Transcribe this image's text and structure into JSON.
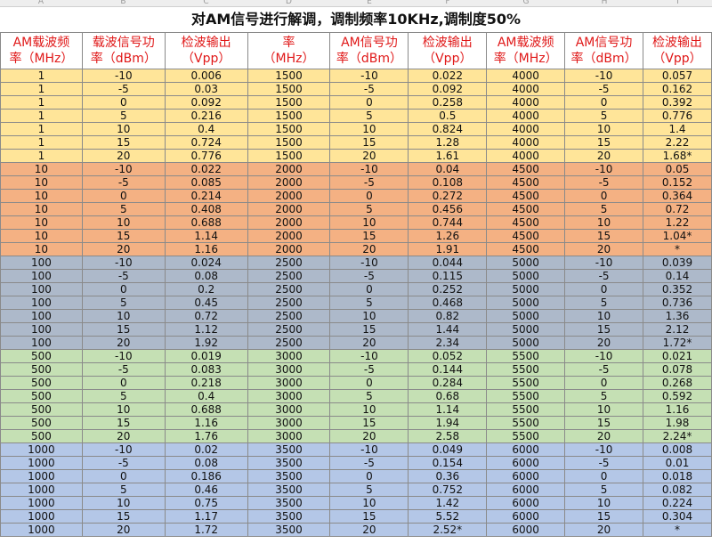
{
  "column_letters": [
    "A",
    "B",
    "C",
    "D",
    "E",
    "F",
    "G",
    "H",
    "I"
  ],
  "title": "对AM信号进行解调，调制频率10KHz,调制度50%",
  "headers": [
    [
      "AM载波频",
      "率（MHz）"
    ],
    [
      "载波信号功",
      "率（dBm）"
    ],
    [
      "检波输出",
      "（Vpp）"
    ],
    [
      "率",
      "（MHz）"
    ],
    [
      "AM信号功",
      "率（dBm）"
    ],
    [
      "检波输出",
      "（Vpp）"
    ],
    [
      "AM载波频",
      "率（MHz）"
    ],
    [
      "AM信号功",
      "率（dBm）"
    ],
    [
      "检波输出",
      "（Vpp）"
    ]
  ],
  "group_colors": [
    "#ffe599",
    "#f4b183",
    "#adb9ca",
    "#c5e0b4",
    "#b4c7e7"
  ],
  "rows": [
    [
      "1",
      "-10",
      "0.006",
      "1500",
      "-10",
      "0.022",
      "4000",
      "-10",
      "0.057"
    ],
    [
      "1",
      "-5",
      "0.03",
      "1500",
      "-5",
      "0.092",
      "4000",
      "-5",
      "0.162"
    ],
    [
      "1",
      "0",
      "0.092",
      "1500",
      "0",
      "0.258",
      "4000",
      "0",
      "0.392"
    ],
    [
      "1",
      "5",
      "0.216",
      "1500",
      "5",
      "0.5",
      "4000",
      "5",
      "0.776"
    ],
    [
      "1",
      "10",
      "0.4",
      "1500",
      "10",
      "0.824",
      "4000",
      "10",
      "1.4"
    ],
    [
      "1",
      "15",
      "0.724",
      "1500",
      "15",
      "1.28",
      "4000",
      "15",
      "2.22"
    ],
    [
      "1",
      "20",
      "0.776",
      "1500",
      "20",
      "1.61",
      "4000",
      "20",
      "1.68*"
    ],
    [
      "10",
      "-10",
      "0.022",
      "2000",
      "-10",
      "0.04",
      "4500",
      "-10",
      "0.05"
    ],
    [
      "10",
      "-5",
      "0.085",
      "2000",
      "-5",
      "0.108",
      "4500",
      "-5",
      "0.152"
    ],
    [
      "10",
      "0",
      "0.214",
      "2000",
      "0",
      "0.272",
      "4500",
      "0",
      "0.364"
    ],
    [
      "10",
      "5",
      "0.408",
      "2000",
      "5",
      "0.456",
      "4500",
      "5",
      "0.72"
    ],
    [
      "10",
      "10",
      "0.688",
      "2000",
      "10",
      "0.744",
      "4500",
      "10",
      "1.22"
    ],
    [
      "10",
      "15",
      "1.14",
      "2000",
      "15",
      "1.26",
      "4500",
      "15",
      "1.04*"
    ],
    [
      "10",
      "20",
      "1.16",
      "2000",
      "20",
      "1.91",
      "4500",
      "20",
      "*"
    ],
    [
      "100",
      "-10",
      "0.024",
      "2500",
      "-10",
      "0.044",
      "5000",
      "-10",
      "0.039"
    ],
    [
      "100",
      "-5",
      "0.08",
      "2500",
      "-5",
      "0.115",
      "5000",
      "-5",
      "0.14"
    ],
    [
      "100",
      "0",
      "0.2",
      "2500",
      "0",
      "0.252",
      "5000",
      "0",
      "0.352"
    ],
    [
      "100",
      "5",
      "0.45",
      "2500",
      "5",
      "0.468",
      "5000",
      "5",
      "0.736"
    ],
    [
      "100",
      "10",
      "0.72",
      "2500",
      "10",
      "0.82",
      "5000",
      "10",
      "1.36"
    ],
    [
      "100",
      "15",
      "1.12",
      "2500",
      "15",
      "1.44",
      "5000",
      "15",
      "2.12"
    ],
    [
      "100",
      "20",
      "1.92",
      "2500",
      "20",
      "2.34",
      "5000",
      "20",
      "1.72*"
    ],
    [
      "500",
      "-10",
      "0.019",
      "3000",
      "-10",
      "0.052",
      "5500",
      "-10",
      "0.021"
    ],
    [
      "500",
      "-5",
      "0.083",
      "3000",
      "-5",
      "0.144",
      "5500",
      "-5",
      "0.078"
    ],
    [
      "500",
      "0",
      "0.218",
      "3000",
      "0",
      "0.284",
      "5500",
      "0",
      "0.268"
    ],
    [
      "500",
      "5",
      "0.4",
      "3000",
      "5",
      "0.68",
      "5500",
      "5",
      "0.592"
    ],
    [
      "500",
      "10",
      "0.688",
      "3000",
      "10",
      "1.14",
      "5500",
      "10",
      "1.16"
    ],
    [
      "500",
      "15",
      "1.16",
      "3000",
      "15",
      "1.94",
      "5500",
      "15",
      "1.98"
    ],
    [
      "500",
      "20",
      "1.76",
      "3000",
      "20",
      "2.58",
      "5500",
      "20",
      "2.24*"
    ],
    [
      "1000",
      "-10",
      "0.02",
      "3500",
      "-10",
      "0.049",
      "6000",
      "-10",
      "0.008"
    ],
    [
      "1000",
      "-5",
      "0.08",
      "3500",
      "-5",
      "0.154",
      "6000",
      "-5",
      "0.01"
    ],
    [
      "1000",
      "0",
      "0.186",
      "3500",
      "0",
      "0.36",
      "6000",
      "0",
      "0.018"
    ],
    [
      "1000",
      "5",
      "0.46",
      "3500",
      "5",
      "0.752",
      "6000",
      "5",
      "0.082"
    ],
    [
      "1000",
      "10",
      "0.75",
      "3500",
      "10",
      "1.42",
      "6000",
      "10",
      "0.224"
    ],
    [
      "1000",
      "15",
      "1.17",
      "3500",
      "15",
      "5.52",
      "6000",
      "15",
      "0.304"
    ],
    [
      "1000",
      "20",
      "1.72",
      "3500",
      "20",
      "2.52*",
      "6000",
      "20",
      "*"
    ]
  ]
}
